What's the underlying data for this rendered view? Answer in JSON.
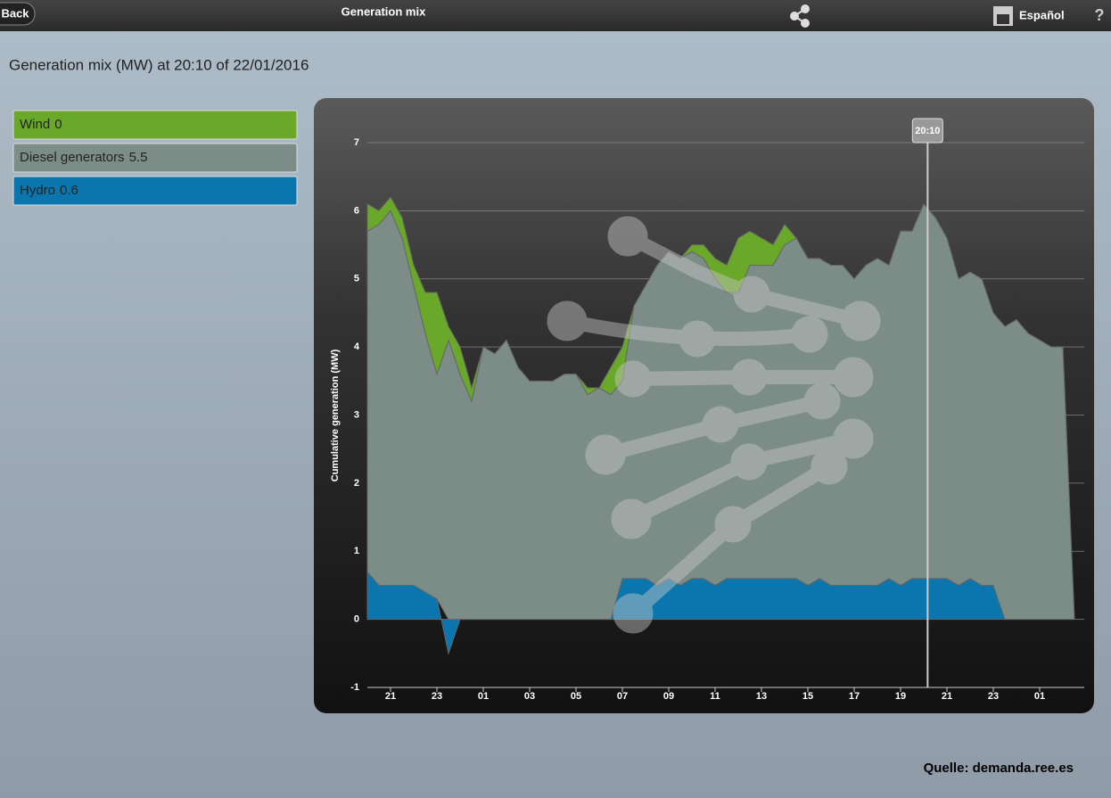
{
  "header": {
    "back": "Back",
    "title": "Generation mix",
    "language": "Español",
    "help": "?"
  },
  "subtitle": "Generation mix (MW) at 20:10 of 22/01/2016",
  "source": "Quelle: demanda.ree.es",
  "chart_data": {
    "type": "stacked-area",
    "y_label": "Cumulative generation (MW)",
    "x": [
      20,
      20.5,
      21,
      21.5,
      22,
      22.5,
      23,
      23.5,
      24,
      24.5,
      25,
      25.5,
      26,
      26.5,
      27,
      27.5,
      28,
      28.5,
      29,
      29.5,
      30,
      30.5,
      31,
      31.5,
      32,
      32.5,
      33,
      33.5,
      34,
      34.5,
      35,
      35.5,
      36,
      36.5,
      37,
      37.5,
      38,
      38.5,
      39,
      39.5,
      40,
      40.5,
      41,
      41.5,
      42,
      42.5,
      43,
      43.5,
      44,
      44.5,
      45,
      45.5,
      46,
      46.5,
      47,
      47.5,
      48,
      48.5,
      49,
      49.5,
      50,
      50.5
    ],
    "series": [
      {
        "name": "Wind",
        "color": "#6aa82a",
        "values": [
          0.4,
          0.2,
          0.2,
          0.3,
          0.3,
          0.6,
          1.2,
          0.2,
          0.4,
          0.2,
          0,
          0,
          0,
          0,
          0,
          0,
          0,
          0,
          0,
          0.1,
          0,
          0.4,
          0.5,
          0,
          0,
          0,
          0,
          0,
          0.1,
          0.2,
          0.3,
          0.4,
          0.8,
          0.5,
          0.4,
          0.3,
          0.3,
          0,
          0,
          0,
          0,
          0,
          0,
          0,
          0,
          0,
          0,
          0,
          0,
          0,
          0,
          0,
          0,
          0,
          0,
          0,
          0,
          0,
          0,
          0,
          0,
          0
        ]
      },
      {
        "name": "Diesel generators",
        "color": "#7c8d87",
        "values": [
          5.0,
          5.3,
          5.5,
          5.1,
          4.4,
          3.8,
          3.3,
          4.1,
          3.6,
          3.2,
          4.0,
          3.9,
          4.1,
          3.7,
          3.5,
          3.5,
          3.5,
          3.6,
          3.6,
          3.3,
          3.4,
          3.3,
          2.9,
          4.0,
          4.3,
          4.7,
          4.8,
          4.8,
          4.8,
          4.7,
          4.5,
          4.2,
          4.2,
          4.6,
          4.6,
          4.6,
          4.9,
          5.0,
          4.8,
          4.7,
          4.7,
          4.7,
          4.5,
          4.7,
          4.8,
          4.6,
          5.2,
          5.1,
          5.5,
          5.3,
          5.0,
          4.5,
          4.5,
          4.5,
          4.0,
          4.3,
          4.4,
          4.2,
          4.1,
          4.0,
          4.0,
          0
        ]
      },
      {
        "name": "Hydro",
        "color": "#0b76ae",
        "values": [
          0.7,
          0.5,
          0.5,
          0.5,
          0.5,
          0.4,
          0.3,
          -0.5,
          0,
          0,
          0,
          0,
          0,
          0,
          0,
          0,
          0,
          0,
          0,
          0,
          0,
          0,
          0.6,
          0.6,
          0.6,
          0.5,
          0.6,
          0.5,
          0.6,
          0.6,
          0.5,
          0.6,
          0.6,
          0.6,
          0.6,
          0.6,
          0.6,
          0.6,
          0.5,
          0.6,
          0.5,
          0.5,
          0.5,
          0.5,
          0.5,
          0.6,
          0.5,
          0.6,
          0.6,
          0.6,
          0.6,
          0.5,
          0.6,
          0.5,
          0.5,
          0,
          0,
          0,
          0,
          0,
          0,
          0
        ]
      }
    ],
    "cursor": {
      "x": 44.1667,
      "label": "20:10",
      "values": [
        0,
        5.5,
        0.6
      ]
    },
    "xlim": [
      20,
      51
    ],
    "xticks": [
      21,
      23,
      {
        "value": 25,
        "label": "01"
      },
      {
        "value": 27,
        "label": "03"
      },
      {
        "value": 29,
        "label": "05"
      },
      {
        "value": 31,
        "label": "07"
      },
      {
        "value": 33,
        "label": "09"
      },
      {
        "value": 35,
        "label": "11"
      },
      {
        "value": 37,
        "label": "13"
      },
      {
        "value": 39,
        "label": "15"
      },
      {
        "value": 41,
        "label": "17"
      },
      {
        "value": 43,
        "label": "19"
      },
      {
        "value": 45,
        "label": "21"
      },
      {
        "value": 47,
        "label": "23"
      },
      {
        "value": 49,
        "label": "01"
      }
    ],
    "ylim": [
      -1,
      7
    ],
    "yticks": [
      -1,
      0,
      1,
      2,
      3,
      4,
      5,
      6,
      7
    ],
    "grid": true
  }
}
